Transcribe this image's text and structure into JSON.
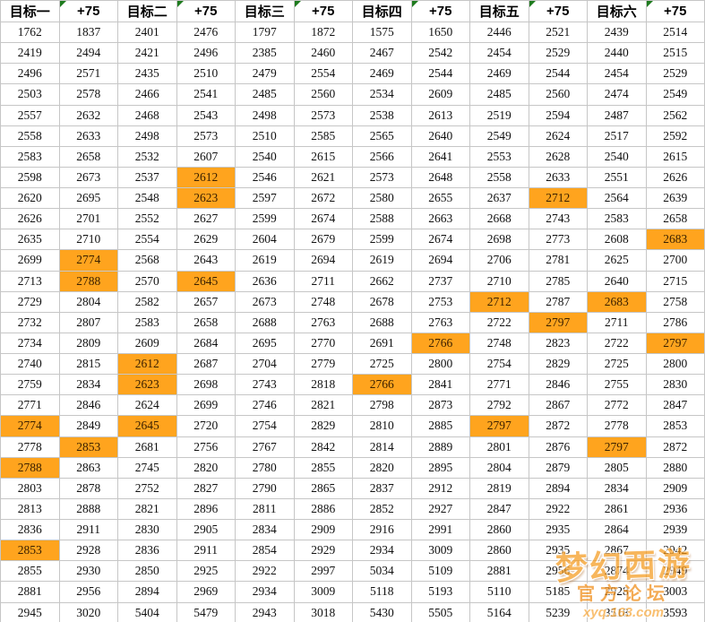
{
  "table": {
    "headers": [
      "目标一",
      "+75",
      "目标二",
      "+75",
      "目标三",
      "+75",
      "目标四",
      "+75",
      "目标五",
      "+75",
      "目标六",
      "+75"
    ],
    "error_marker_columns": [
      1,
      3,
      5,
      7,
      9,
      11
    ],
    "rows": [
      [
        1762,
        1837,
        2401,
        2476,
        1797,
        1872,
        1575,
        1650,
        2446,
        2521,
        2439,
        2514
      ],
      [
        2419,
        2494,
        2421,
        2496,
        2385,
        2460,
        2467,
        2542,
        2454,
        2529,
        2440,
        2515
      ],
      [
        2496,
        2571,
        2435,
        2510,
        2479,
        2554,
        2469,
        2544,
        2469,
        2544,
        2454,
        2529
      ],
      [
        2503,
        2578,
        2466,
        2541,
        2485,
        2560,
        2534,
        2609,
        2485,
        2560,
        2474,
        2549
      ],
      [
        2557,
        2632,
        2468,
        2543,
        2498,
        2573,
        2538,
        2613,
        2519,
        2594,
        2487,
        2562
      ],
      [
        2558,
        2633,
        2498,
        2573,
        2510,
        2585,
        2565,
        2640,
        2549,
        2624,
        2517,
        2592
      ],
      [
        2583,
        2658,
        2532,
        2607,
        2540,
        2615,
        2566,
        2641,
        2553,
        2628,
        2540,
        2615
      ],
      [
        2598,
        2673,
        2537,
        2612,
        2546,
        2621,
        2573,
        2648,
        2558,
        2633,
        2551,
        2626
      ],
      [
        2620,
        2695,
        2548,
        2623,
        2597,
        2672,
        2580,
        2655,
        2637,
        2712,
        2564,
        2639
      ],
      [
        2626,
        2701,
        2552,
        2627,
        2599,
        2674,
        2588,
        2663,
        2668,
        2743,
        2583,
        2658
      ],
      [
        2635,
        2710,
        2554,
        2629,
        2604,
        2679,
        2599,
        2674,
        2698,
        2773,
        2608,
        2683
      ],
      [
        2699,
        2774,
        2568,
        2643,
        2619,
        2694,
        2619,
        2694,
        2706,
        2781,
        2625,
        2700
      ],
      [
        2713,
        2788,
        2570,
        2645,
        2636,
        2711,
        2662,
        2737,
        2710,
        2785,
        2640,
        2715
      ],
      [
        2729,
        2804,
        2582,
        2657,
        2673,
        2748,
        2678,
        2753,
        2712,
        2787,
        2683,
        2758
      ],
      [
        2732,
        2807,
        2583,
        2658,
        2688,
        2763,
        2688,
        2763,
        2722,
        2797,
        2711,
        2786
      ],
      [
        2734,
        2809,
        2609,
        2684,
        2695,
        2770,
        2691,
        2766,
        2748,
        2823,
        2722,
        2797
      ],
      [
        2740,
        2815,
        2612,
        2687,
        2704,
        2779,
        2725,
        2800,
        2754,
        2829,
        2725,
        2800
      ],
      [
        2759,
        2834,
        2623,
        2698,
        2743,
        2818,
        2766,
        2841,
        2771,
        2846,
        2755,
        2830
      ],
      [
        2771,
        2846,
        2624,
        2699,
        2746,
        2821,
        2798,
        2873,
        2792,
        2867,
        2772,
        2847
      ],
      [
        2774,
        2849,
        2645,
        2720,
        2754,
        2829,
        2810,
        2885,
        2797,
        2872,
        2778,
        2853
      ],
      [
        2778,
        2853,
        2681,
        2756,
        2767,
        2842,
        2814,
        2889,
        2801,
        2876,
        2797,
        2872
      ],
      [
        2788,
        2863,
        2745,
        2820,
        2780,
        2855,
        2820,
        2895,
        2804,
        2879,
        2805,
        2880
      ],
      [
        2803,
        2878,
        2752,
        2827,
        2790,
        2865,
        2837,
        2912,
        2819,
        2894,
        2834,
        2909
      ],
      [
        2813,
        2888,
        2821,
        2896,
        2811,
        2886,
        2852,
        2927,
        2847,
        2922,
        2861,
        2936
      ],
      [
        2836,
        2911,
        2830,
        2905,
        2834,
        2909,
        2916,
        2991,
        2860,
        2935,
        2864,
        2939
      ],
      [
        2853,
        2928,
        2836,
        2911,
        2854,
        2929,
        2934,
        3009,
        2860,
        2935,
        2867,
        2942
      ],
      [
        2855,
        2930,
        2850,
        2925,
        2922,
        2997,
        5034,
        5109,
        2881,
        2956,
        2874,
        2949
      ],
      [
        2881,
        2956,
        2894,
        2969,
        2934,
        3009,
        5118,
        5193,
        5110,
        5185,
        2928,
        3003
      ],
      [
        2945,
        3020,
        5404,
        5479,
        2943,
        3018,
        5430,
        5505,
        5164,
        5239,
        3518,
        3593
      ]
    ],
    "highlighted_cells": [
      [
        7,
        3
      ],
      [
        8,
        3
      ],
      [
        8,
        9
      ],
      [
        10,
        11
      ],
      [
        11,
        1
      ],
      [
        12,
        1
      ],
      [
        12,
        3
      ],
      [
        13,
        8
      ],
      [
        13,
        10
      ],
      [
        14,
        9
      ],
      [
        15,
        7
      ],
      [
        15,
        11
      ],
      [
        16,
        2
      ],
      [
        17,
        2
      ],
      [
        17,
        6
      ],
      [
        19,
        0
      ],
      [
        19,
        2
      ],
      [
        19,
        8
      ],
      [
        20,
        1
      ],
      [
        20,
        10
      ],
      [
        21,
        0
      ],
      [
        25,
        0
      ]
    ],
    "colors": {
      "highlight": "#FFA41E",
      "gridline": "#C6C6C6",
      "error_triangle": "#1E7B1E",
      "header_text": "#000000",
      "cell_text": "#111111"
    }
  },
  "watermark": {
    "title": "梦幻西游",
    "subtitle": "官方论坛",
    "url": "xyq.163.com"
  }
}
